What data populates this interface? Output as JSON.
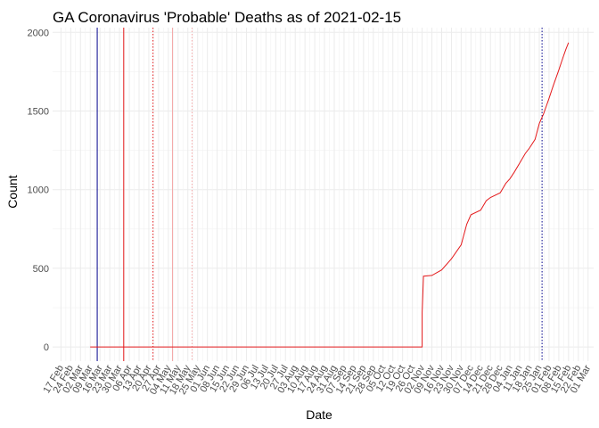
{
  "chart_data": {
    "type": "line",
    "title": "GA Coronavirus 'Probable' Deaths as of 2021-02-15",
    "xlabel": "Date",
    "ylabel": "Count",
    "x_ticks": [
      "17 Feb",
      "24 Feb",
      "02 Mar",
      "09 Mar",
      "16 Mar",
      "23 Mar",
      "30 Mar",
      "06 Apr",
      "13 Apr",
      "20 Apr",
      "27 Apr",
      "04 May",
      "11 May",
      "18 May",
      "25 May",
      "01 Jun",
      "08 Jun",
      "15 Jun",
      "22 Jun",
      "29 Jun",
      "06 Jul",
      "13 Jul",
      "20 Jul",
      "27 Jul",
      "03 Aug",
      "10 Aug",
      "17 Aug",
      "24 Aug",
      "31 Aug",
      "07 Sep",
      "14 Sep",
      "21 Sep",
      "28 Sep",
      "05 Oct",
      "12 Oct",
      "19 Oct",
      "26 Oct",
      "02 Nov",
      "09 Nov",
      "16 Nov",
      "23 Nov",
      "30 Nov",
      "07 Dec",
      "14 Dec",
      "21 Dec",
      "28 Dec",
      "04 Jan",
      "11 Jan",
      "18 Jan",
      "25 Jan",
      "01 Feb",
      "08 Feb",
      "15 Feb",
      "22 Feb",
      "01 Mar"
    ],
    "y_ticks": [
      0,
      500,
      1000,
      1500,
      2000
    ],
    "ylim": [
      -90,
      2030
    ],
    "grid": true,
    "series": [
      {
        "color": "#e41a1c",
        "points": [
          [
            "09 Mar",
            0
          ],
          [
            "02 Nov",
            0
          ],
          [
            "02 Nov",
            220
          ],
          [
            "03 Nov",
            450
          ],
          [
            "09 Nov",
            455
          ],
          [
            "16 Nov",
            490
          ],
          [
            "23 Nov",
            560
          ],
          [
            "30 Nov",
            650
          ],
          [
            "04 Dec",
            780
          ],
          [
            "07 Dec",
            840
          ],
          [
            "14 Dec",
            870
          ],
          [
            "18 Dec",
            930
          ],
          [
            "21 Dec",
            950
          ],
          [
            "28 Dec",
            980
          ],
          [
            "01 Jan",
            1040
          ],
          [
            "04 Jan",
            1070
          ],
          [
            "07 Jan",
            1110
          ],
          [
            "11 Jan",
            1170
          ],
          [
            "15 Jan",
            1230
          ],
          [
            "18 Jan",
            1265
          ],
          [
            "22 Jan",
            1320
          ],
          [
            "25 Jan",
            1420
          ],
          [
            "28 Jan",
            1480
          ],
          [
            "01 Feb",
            1580
          ],
          [
            "04 Feb",
            1660
          ],
          [
            "08 Feb",
            1760
          ],
          [
            "11 Feb",
            1840
          ],
          [
            "13 Feb",
            1890
          ],
          [
            "15 Feb",
            1935
          ]
        ]
      }
    ],
    "vlines": [
      {
        "x": "14 Mar",
        "color": "#00008b",
        "style": "solid"
      },
      {
        "x": "02 Apr",
        "color": "#e41a1c",
        "style": "solid"
      },
      {
        "x": "23 Apr",
        "color": "#e41a1c",
        "style": "dotted"
      },
      {
        "x": "07 May",
        "color": "#f4a6a6",
        "style": "solid"
      },
      {
        "x": "21 May",
        "color": "#f4a6a6",
        "style": "dotted"
      },
      {
        "x": "27 Jan",
        "color": "#00008b",
        "style": "dotted"
      }
    ]
  }
}
